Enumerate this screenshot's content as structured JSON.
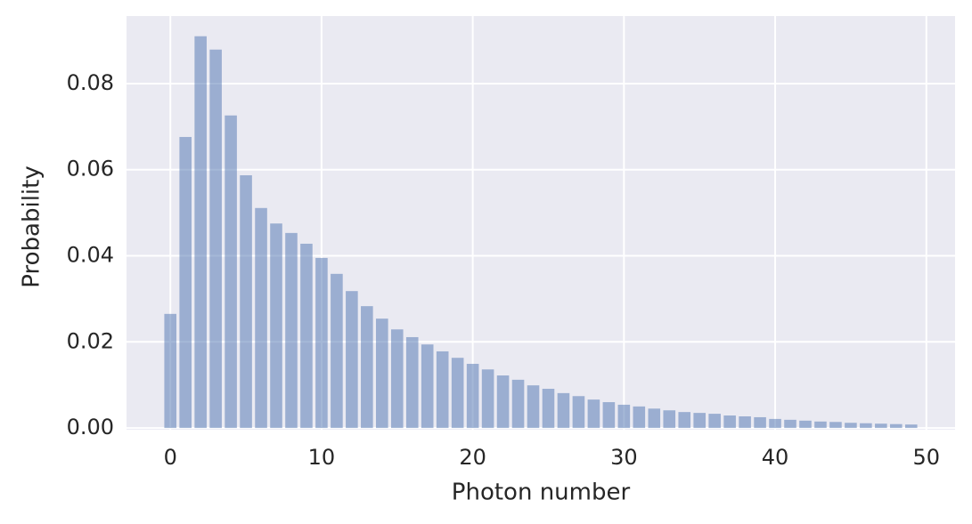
{
  "chart_data": {
    "type": "bar",
    "xlabel": "Photon number",
    "ylabel": "Probability",
    "x": [
      0,
      1,
      2,
      3,
      4,
      5,
      6,
      7,
      8,
      9,
      10,
      11,
      12,
      13,
      14,
      15,
      16,
      17,
      18,
      19,
      20,
      21,
      22,
      23,
      24,
      25,
      26,
      27,
      28,
      29,
      30,
      31,
      32,
      33,
      34,
      35,
      36,
      37,
      38,
      39,
      40,
      41,
      42,
      43,
      44,
      45,
      46,
      47,
      48,
      49
    ],
    "values": [
      0.0265,
      0.0676,
      0.091,
      0.0879,
      0.0726,
      0.0587,
      0.0511,
      0.0475,
      0.0453,
      0.0428,
      0.0395,
      0.0358,
      0.0318,
      0.0283,
      0.0254,
      0.0229,
      0.0211,
      0.0194,
      0.0178,
      0.0163,
      0.0149,
      0.0136,
      0.0122,
      0.0112,
      0.0099,
      0.0091,
      0.0081,
      0.0074,
      0.0066,
      0.006,
      0.0054,
      0.005,
      0.0045,
      0.0041,
      0.0037,
      0.0035,
      0.0033,
      0.0029,
      0.0027,
      0.0025,
      0.0021,
      0.0019,
      0.0017,
      0.0015,
      0.0014,
      0.0012,
      0.0011,
      0.001,
      0.0009,
      0.0008
    ],
    "color": "#4c72b0",
    "alpha": 0.5,
    "bar_width": 0.8,
    "xlim": [
      -2.9,
      51.9
    ],
    "xticks": [
      0,
      10,
      20,
      30,
      40,
      50
    ],
    "ylim": [
      -0.0004,
      0.0957
    ],
    "yticks": [
      {
        "value": 0,
        "label": "0.00"
      },
      0.02,
      0.04,
      0.06,
      0.08
    ],
    "grid": true
  }
}
